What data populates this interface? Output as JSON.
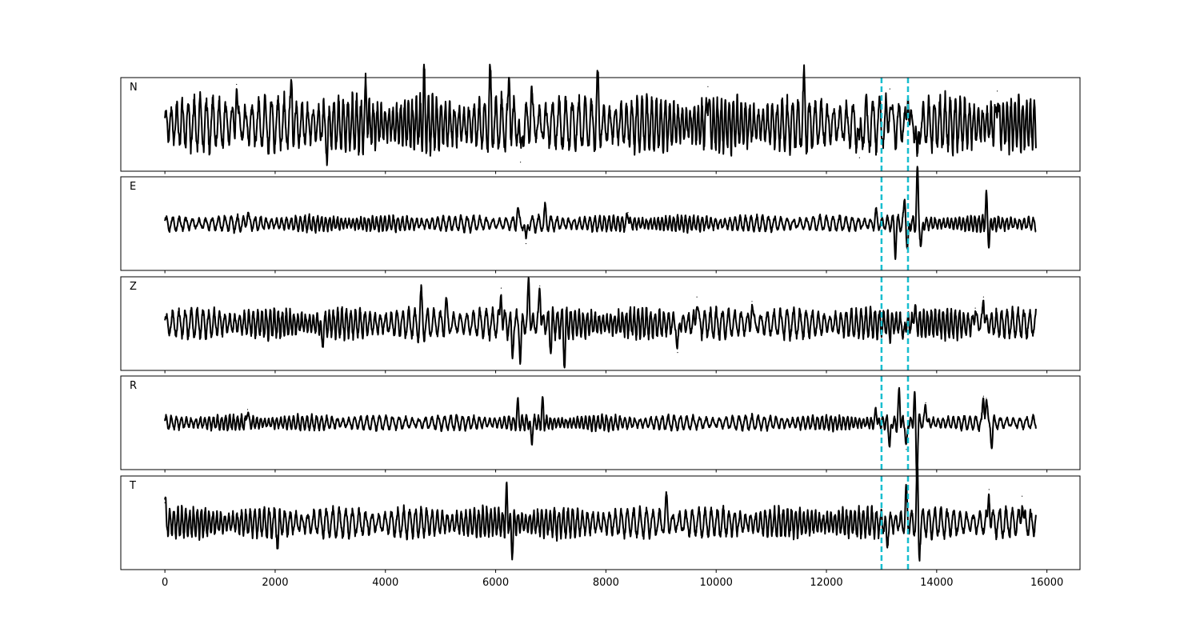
{
  "chart_data": {
    "type": "line",
    "x_ticks": [
      0,
      2000,
      4000,
      6000,
      8000,
      10000,
      12000,
      14000,
      16000
    ],
    "x_tick_labels": [
      "0",
      "2000",
      "4000",
      "6000",
      "8000",
      "10000",
      "12000",
      "14000",
      "16000"
    ],
    "xlim": [
      -800,
      16600
    ],
    "x_range": [
      0,
      15800
    ],
    "y_ticks_shown": false,
    "grid": false,
    "legend": "none",
    "trace_color": "#000000",
    "marker_color": "#17becf",
    "vertical_markers": [
      13000,
      13480
    ],
    "panels": [
      {
        "label": "N",
        "noise_amplitude": 0.55,
        "ylim": [
          -1,
          1
        ],
        "x": [
          1300,
          2300,
          2950,
          3650,
          4700,
          5900,
          6250,
          6450,
          6650,
          7850,
          9850,
          11600,
          12600,
          13150,
          13480,
          13650,
          15100
        ],
        "values": [
          0.9,
          0.85,
          -0.65,
          0.75,
          0.8,
          0.9,
          1.0,
          -0.85,
          0.7,
          0.9,
          0.85,
          0.8,
          -0.75,
          0.8,
          0.75,
          -1.0,
          0.75
        ]
      },
      {
        "label": "E",
        "noise_amplitude": 0.16,
        "ylim": [
          -1,
          1
        ],
        "x": [
          1500,
          6400,
          6550,
          6900,
          8400,
          12900,
          13250,
          13420,
          13470,
          13650,
          13720,
          14900,
          14950
        ],
        "values": [
          0.25,
          0.35,
          -0.45,
          0.3,
          0.25,
          0.25,
          -0.6,
          0.55,
          -0.65,
          1.15,
          -0.5,
          0.55,
          -0.4
        ]
      },
      {
        "label": "Z",
        "noise_amplitude": 0.3,
        "ylim": [
          -1,
          1
        ],
        "x": [
          2850,
          4650,
          5100,
          6100,
          6300,
          6450,
          6600,
          6800,
          7000,
          7250,
          9300,
          9650,
          10650,
          13150,
          13400,
          13600,
          14700,
          14850
        ],
        "values": [
          -0.5,
          0.55,
          0.45,
          0.8,
          -0.7,
          -0.75,
          0.95,
          0.85,
          -0.5,
          -0.8,
          -0.65,
          0.6,
          0.5,
          -0.2,
          -0.3,
          0.4,
          0.35,
          0.6
        ]
      },
      {
        "label": "R",
        "noise_amplitude": 0.15,
        "ylim": [
          -1,
          1
        ],
        "x": [
          1500,
          6400,
          6650,
          6850,
          12900,
          13150,
          13320,
          13450,
          13600,
          13640,
          13800,
          14850,
          14900,
          15000
        ],
        "values": [
          0.3,
          0.4,
          -0.45,
          0.45,
          0.3,
          -0.55,
          0.7,
          -0.6,
          0.55,
          -1.15,
          0.45,
          0.6,
          0.55,
          -0.5
        ]
      },
      {
        "label": "T",
        "noise_amplitude": 0.3,
        "ylim": [
          -1,
          1
        ],
        "x": [
          0,
          2050,
          6200,
          6300,
          9100,
          13100,
          13450,
          13650,
          13680,
          14950,
          15550
        ],
        "values": [
          0.45,
          -0.45,
          0.6,
          -0.6,
          0.5,
          -0.5,
          0.65,
          1.15,
          -0.65,
          0.75,
          0.6
        ]
      }
    ]
  }
}
